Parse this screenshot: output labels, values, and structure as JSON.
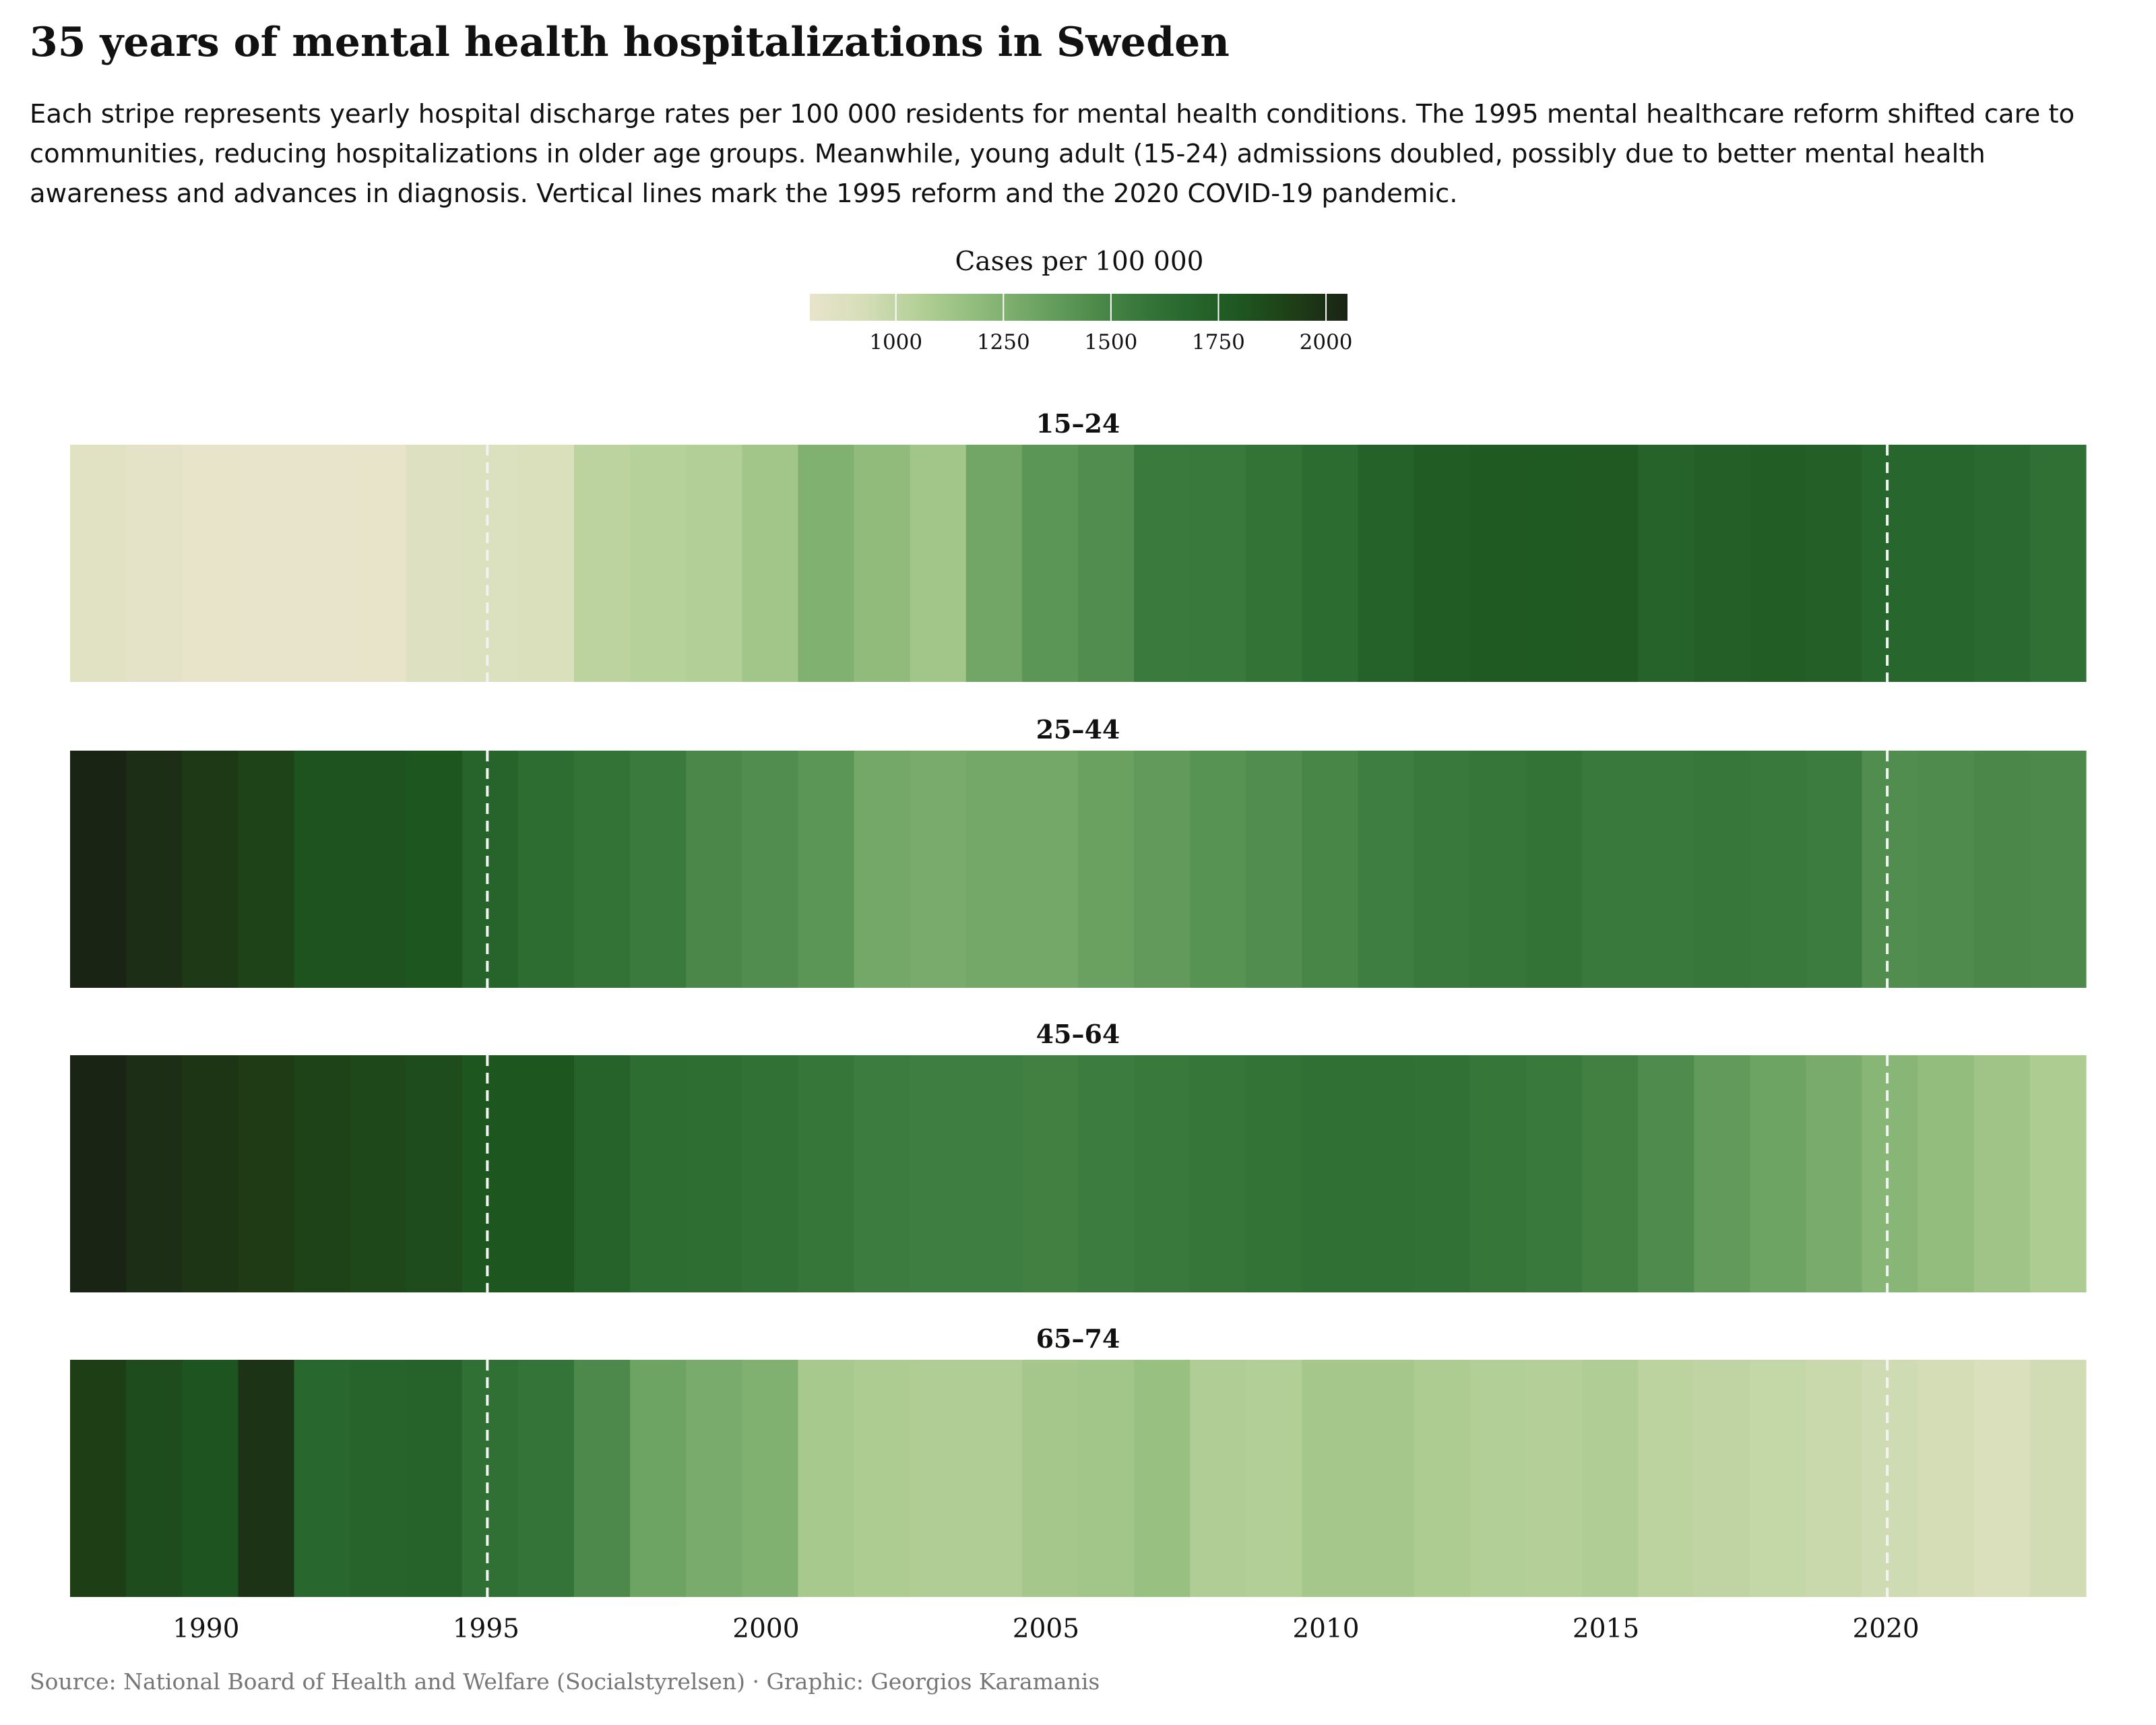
{
  "title": "35 years of mental health hospitalizations in Sweden",
  "subtitle": "Each stripe represents yearly hospital discharge rates per 100 000 residents for mental health conditions. The 1995 mental healthcare reform shifted care to communities, reducing hospitalizations in older age groups. Meanwhile, young adult (15-24) admissions doubled, possibly due to better mental health awareness and advances in diagnosis. Vertical lines mark the 1995 reform and the 2020 COVID-19 pandemic.",
  "source": "Source: National Board of Health and Welfare (Socialstyrelsen) · Graphic: Georgios Karamanis",
  "chart_data": {
    "type": "heatmap",
    "legend": {
      "title": "Cases per 100 000",
      "min": 800,
      "max": 2050,
      "ticks": [
        1000,
        1250,
        1500,
        1750,
        2000
      ],
      "placement": "top-center"
    },
    "x_axis": {
      "tick_labels": [
        1990,
        1995,
        2000,
        2005,
        2010,
        2015,
        2020
      ],
      "range": [
        1988,
        2023
      ]
    },
    "reference_lines": [
      1995,
      2020
    ],
    "grid": false,
    "years": [
      1988,
      1989,
      1990,
      1991,
      1992,
      1993,
      1994,
      1995,
      1996,
      1997,
      1998,
      1999,
      2000,
      2001,
      2002,
      2003,
      2004,
      2005,
      2006,
      2007,
      2008,
      2009,
      2010,
      2011,
      2012,
      2013,
      2014,
      2015,
      2016,
      2017,
      2018,
      2019,
      2020,
      2021,
      2022,
      2023
    ],
    "panels": [
      {
        "label": "15–24",
        "values": [
          850,
          830,
          810,
          800,
          800,
          810,
          870,
          890,
          900,
          1020,
          1040,
          1060,
          1120,
          1250,
          1190,
          1120,
          1310,
          1400,
          1450,
          1550,
          1560,
          1600,
          1650,
          1720,
          1760,
          1770,
          1770,
          1780,
          1710,
          1740,
          1750,
          1740,
          1690,
          1690,
          1660,
          1620
        ]
      },
      {
        "label": "25–44",
        "values": [
          2050,
          2000,
          1950,
          1900,
          1820,
          1820,
          1800,
          1700,
          1640,
          1600,
          1550,
          1480,
          1450,
          1400,
          1300,
          1280,
          1300,
          1300,
          1340,
          1380,
          1420,
          1450,
          1490,
          1530,
          1560,
          1580,
          1600,
          1560,
          1560,
          1570,
          1560,
          1540,
          1450,
          1460,
          1480,
          1470
        ]
      },
      {
        "label": "45–64",
        "values": [
          2050,
          2000,
          1970,
          1940,
          1900,
          1880,
          1850,
          1800,
          1800,
          1710,
          1640,
          1630,
          1610,
          1580,
          1540,
          1530,
          1530,
          1520,
          1540,
          1560,
          1580,
          1600,
          1620,
          1620,
          1610,
          1580,
          1560,
          1520,
          1460,
          1380,
          1330,
          1280,
          1220,
          1180,
          1130,
          1080
        ]
      },
      {
        "label": "65–74",
        "values": [
          1920,
          1850,
          1810,
          1980,
          1680,
          1700,
          1710,
          1620,
          1590,
          1470,
          1330,
          1280,
          1250,
          1100,
          1080,
          1070,
          1070,
          1110,
          1120,
          1160,
          1070,
          1060,
          1110,
          1110,
          1080,
          1060,
          1050,
          1070,
          1020,
          1010,
          990,
          970,
          950,
          930,
          900,
          940
        ]
      }
    ]
  }
}
